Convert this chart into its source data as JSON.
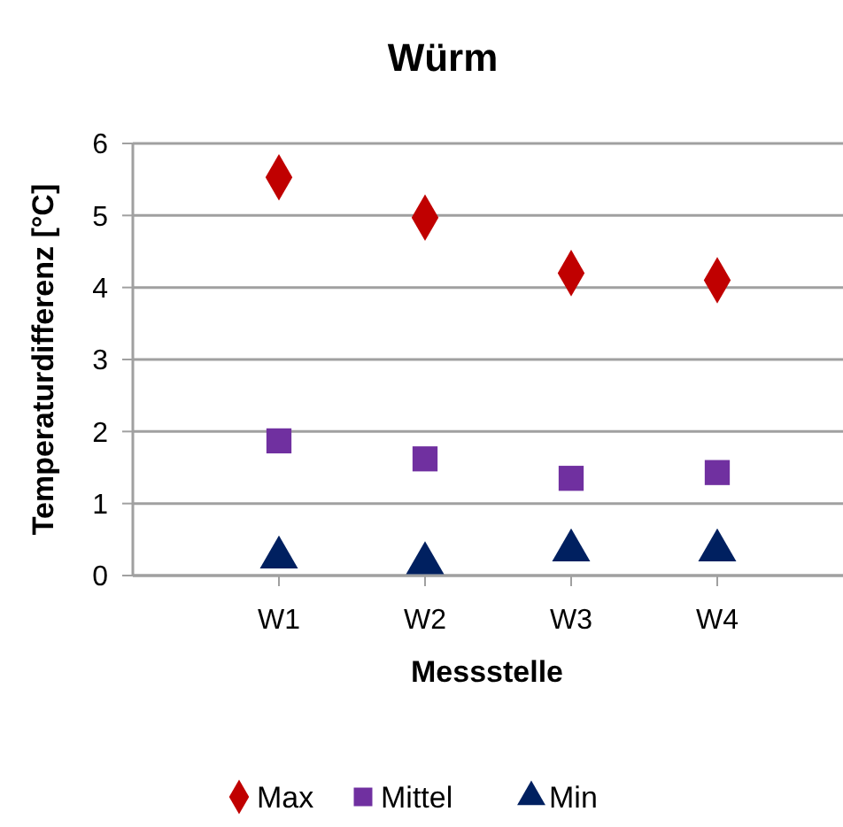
{
  "chart_data": {
    "type": "scatter",
    "title": "Würm",
    "xlabel": "Messstelle",
    "ylabel": "Temperaturdifferenz [°C]",
    "categories": [
      "W1",
      "W2",
      "W3",
      "W4"
    ],
    "series": [
      {
        "name": "Max",
        "color": "#c00000",
        "marker": "diamond",
        "values": [
          5.53,
          4.97,
          4.2,
          4.1
        ]
      },
      {
        "name": "Mittel",
        "color": "#7030a0",
        "marker": "square",
        "values": [
          1.87,
          1.62,
          1.35,
          1.43
        ]
      },
      {
        "name": "Min",
        "color": "#002060",
        "marker": "triangle",
        "values": [
          0.25,
          0.17,
          0.35,
          0.35
        ]
      }
    ],
    "ylim": [
      0,
      6
    ],
    "yticks": [
      0,
      1,
      2,
      3,
      4,
      5,
      6
    ],
    "grid": "y",
    "legend": "bottom"
  }
}
